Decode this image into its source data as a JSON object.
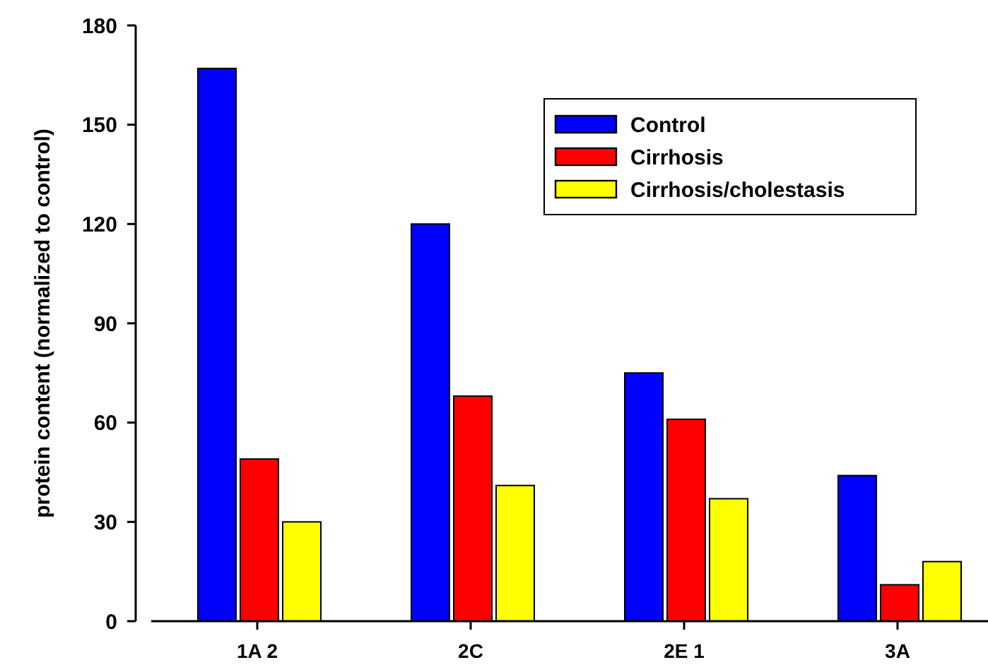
{
  "chart_data": {
    "type": "bar",
    "ylabel": "protein content (normalized to control)",
    "categories": [
      "1A 2",
      "2C",
      "2E 1",
      "3A"
    ],
    "series": [
      {
        "name": "Control",
        "color": "#0000ff",
        "values": [
          167,
          120,
          75,
          44
        ]
      },
      {
        "name": "Cirrhosis",
        "color": "#ff0000",
        "values": [
          49,
          68,
          61,
          11
        ]
      },
      {
        "name": "Cirrhosis/cholestasis",
        "color": "#ffff00",
        "values": [
          30,
          41,
          37,
          18
        ]
      }
    ],
    "ylim": [
      0,
      180
    ],
    "yticks": [
      0,
      30,
      60,
      90,
      120,
      150,
      180
    ],
    "legend": "top right"
  }
}
